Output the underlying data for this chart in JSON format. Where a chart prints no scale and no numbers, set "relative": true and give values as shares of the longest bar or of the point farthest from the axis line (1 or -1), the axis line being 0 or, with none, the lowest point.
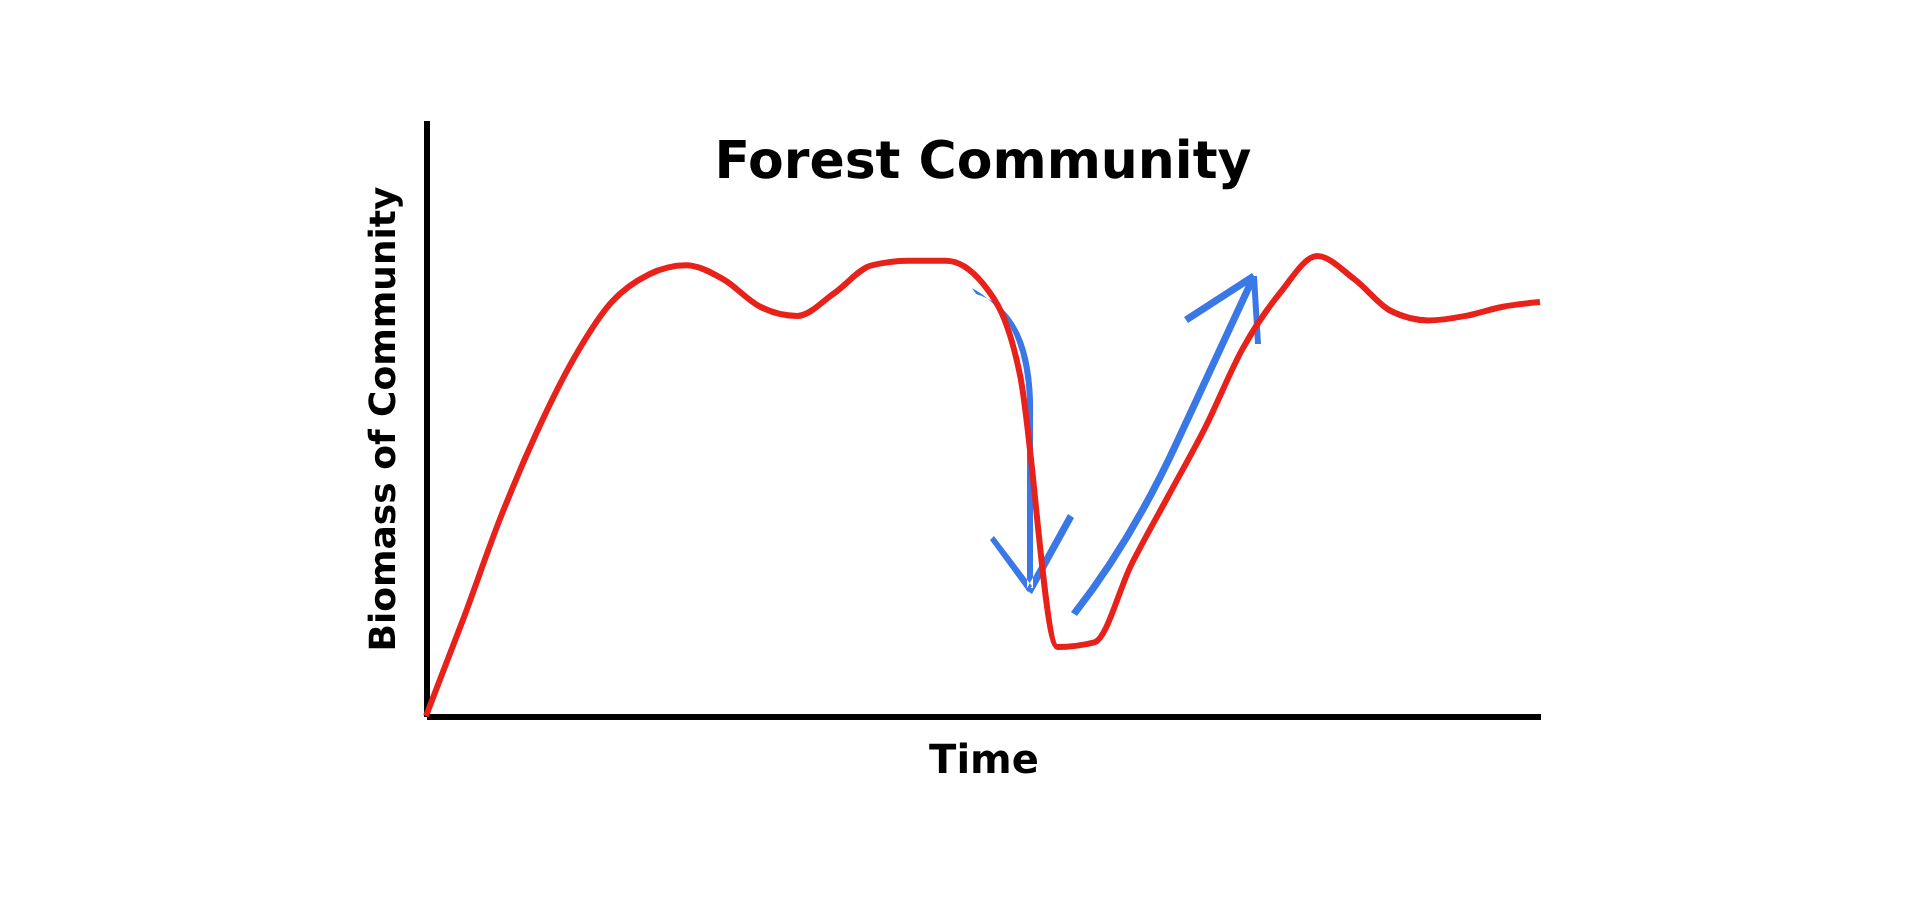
{
  "chart_data": {
    "type": "line",
    "title": "Forest Community",
    "xlabel": "Time",
    "ylabel": "Biomass of Community",
    "relative": true,
    "categories": [
      null,
      null,
      null,
      null,
      null,
      null,
      null,
      null,
      null,
      null,
      null,
      null,
      null,
      null,
      null,
      null,
      null,
      null,
      null,
      null,
      null,
      null,
      null,
      null,
      null,
      null,
      null,
      null,
      null,
      null,
      null
    ],
    "series": [
      {
        "color": "#e8221b",
        "values": [
          0,
          0.21,
          0.43,
          0.62,
          0.78,
          0.9,
          0.96,
          0.98,
          0.95,
          0.89,
          0.87,
          0.92,
          0.98,
          0.99,
          0.99,
          0.94,
          0.74,
          0.15,
          0.16,
          0.33,
          0.48,
          0.63,
          0.8,
          0.92,
          1.0,
          0.95,
          0.88,
          0.86,
          0.87,
          0.89,
          0.9
        ]
      }
    ]
  }
}
